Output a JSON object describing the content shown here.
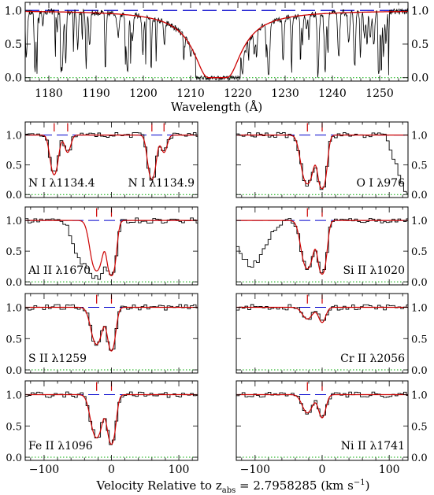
{
  "chart_data": [
    {
      "type": "line",
      "xlabel": "Wavelength (Å)",
      "xlim": [
        1175,
        1256
      ],
      "ylim": [
        -0.05,
        1.12
      ],
      "xticks": [
        "1180",
        "1190",
        "1200",
        "1210",
        "1220",
        "1230",
        "1240",
        "1250"
      ],
      "yticks": [
        "0.0",
        "0.5",
        "1.0"
      ],
      "series": [
        {
          "role": "flux",
          "color": "#000000"
        },
        {
          "role": "damped-lya-fit",
          "color": "#cc0000",
          "center": 1215.7,
          "width": 4.2
        },
        {
          "role": "continuum",
          "color": "#0000cc",
          "style": "dashed",
          "value": 1.0
        },
        {
          "role": "zero",
          "color": "#00aa00",
          "style": "dotted",
          "value": 0.0
        }
      ]
    },
    {
      "type": "line",
      "xlabel": "Velocity Relative to z",
      "xlabel_sub": "abs",
      "xlabel_tail": " = 2.7958285 (km s",
      "xlabel_sup": "−1",
      "xlabel_close": ")",
      "xlim": [
        -128,
        128
      ],
      "ylim": [
        -0.05,
        1.22
      ],
      "xticks": [
        "−100",
        "0",
        "100"
      ],
      "yticks": [
        "0.0",
        "0.5",
        "1.0"
      ],
      "component_velocities": [
        -22,
        0
      ],
      "panels": [
        {
          "ion": "N I",
          "line": "λ1134.4",
          "line2": "N I λ1134.9",
          "depth": 0.48,
          "col": 0,
          "row": 0
        },
        {
          "ion": "O I",
          "line": "λ976",
          "depth": 1.0,
          "col": 1,
          "row": 0
        },
        {
          "ion": "Al II",
          "line": "λ1670",
          "depth": 1.0,
          "col": 0,
          "row": 1
        },
        {
          "ion": "Si II",
          "line": "λ1020",
          "depth": 0.9,
          "col": 1,
          "row": 1
        },
        {
          "ion": "S II",
          "line": "λ1259",
          "depth": 0.52,
          "col": 0,
          "row": 2
        },
        {
          "ion": "Cr II",
          "line": "λ2056",
          "depth": 0.12,
          "col": 1,
          "row": 2
        },
        {
          "ion": "Fe II",
          "line": "λ1096",
          "depth": 0.68,
          "col": 0,
          "row": 3
        },
        {
          "ion": "Ni II",
          "line": "λ1741",
          "depth": 0.2,
          "col": 1,
          "row": 3
        }
      ]
    }
  ]
}
